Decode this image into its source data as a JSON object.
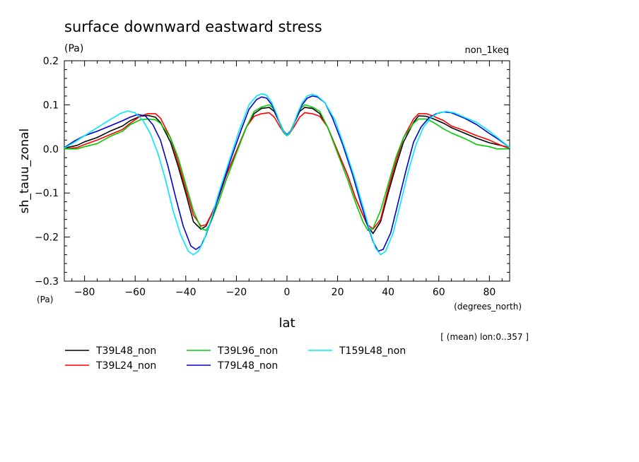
{
  "chart_data": {
    "type": "line",
    "title": "surface downward eastward stress",
    "units_top": "(Pa)",
    "experiment": "non_1keq",
    "ylabel": "sh_tauu_zonal",
    "ylabel_units": "(Pa)",
    "xlabel": "lat",
    "xlabel_units": "(degrees_north)",
    "note": "[ (mean) lon:0..357 ]",
    "xlim": [
      -88,
      88
    ],
    "ylim": [
      -0.3,
      0.2
    ],
    "x_ticks": [
      -80,
      -60,
      -40,
      -20,
      0,
      20,
      40,
      60,
      80
    ],
    "x_tick_labels": [
      "−80",
      "−60",
      "−40",
      "−20",
      "0",
      "20",
      "40",
      "60",
      "80"
    ],
    "y_ticks": [
      -0.3,
      -0.2,
      -0.1,
      0.0,
      0.1,
      0.2
    ],
    "y_tick_labels": [
      "−0.3",
      "−0.2",
      "−0.1",
      "0.0",
      "0.1",
      "0.2"
    ],
    "grid": false,
    "legend_position": "bottom-left",
    "series": [
      {
        "name": "T39L48_non",
        "color": "#000000",
        "x": [
          -88,
          -83,
          -80,
          -75,
          -70,
          -65,
          -62,
          -58,
          -55,
          -52,
          -50,
          -46,
          -43,
          -40,
          -37,
          -34,
          -32,
          -30,
          -27,
          -24,
          -20,
          -16,
          -13,
          -10,
          -7,
          -5,
          -3,
          -1,
          0,
          1,
          3,
          5,
          7,
          10,
          13,
          16,
          20,
          24,
          27,
          30,
          32,
          34,
          37,
          40,
          43,
          46,
          50,
          52,
          55,
          58,
          62,
          65,
          70,
          75,
          80,
          83,
          86,
          88
        ],
        "y": [
          0.002,
          0.008,
          0.016,
          0.026,
          0.04,
          0.052,
          0.064,
          0.074,
          0.076,
          0.072,
          0.06,
          0.015,
          -0.04,
          -0.1,
          -0.165,
          -0.182,
          -0.175,
          -0.15,
          -0.11,
          -0.06,
          -0.005,
          0.05,
          0.08,
          0.092,
          0.094,
          0.085,
          0.06,
          0.035,
          0.03,
          0.035,
          0.06,
          0.085,
          0.094,
          0.092,
          0.08,
          0.05,
          -0.005,
          -0.06,
          -0.11,
          -0.15,
          -0.175,
          -0.192,
          -0.165,
          -0.1,
          -0.04,
          0.015,
          0.06,
          0.075,
          0.074,
          0.068,
          0.058,
          0.048,
          0.036,
          0.024,
          0.014,
          0.01,
          0.006,
          0.002
        ]
      },
      {
        "name": "T39L24_non",
        "color": "#ff0000",
        "x": [
          -88,
          -83,
          -80,
          -75,
          -70,
          -65,
          -62,
          -58,
          -55,
          -52,
          -50,
          -46,
          -43,
          -40,
          -37,
          -34,
          -32,
          -30,
          -27,
          -24,
          -20,
          -16,
          -13,
          -10,
          -7,
          -5,
          -3,
          -1,
          0,
          1,
          3,
          5,
          7,
          10,
          13,
          16,
          20,
          24,
          27,
          30,
          32,
          34,
          37,
          40,
          43,
          46,
          50,
          52,
          55,
          58,
          62,
          65,
          70,
          75,
          80,
          83,
          86,
          88
        ],
        "y": [
          0.0,
          0.003,
          0.01,
          0.02,
          0.032,
          0.044,
          0.058,
          0.074,
          0.08,
          0.08,
          0.07,
          0.025,
          -0.03,
          -0.09,
          -0.15,
          -0.175,
          -0.172,
          -0.15,
          -0.11,
          -0.06,
          -0.005,
          0.05,
          0.074,
          0.08,
          0.082,
          0.072,
          0.052,
          0.035,
          0.03,
          0.035,
          0.052,
          0.072,
          0.082,
          0.08,
          0.074,
          0.05,
          -0.005,
          -0.06,
          -0.11,
          -0.15,
          -0.172,
          -0.182,
          -0.16,
          -0.09,
          -0.03,
          0.025,
          0.068,
          0.08,
          0.08,
          0.074,
          0.064,
          0.052,
          0.042,
          0.03,
          0.02,
          0.012,
          0.005,
          0.002
        ]
      },
      {
        "name": "T39L96_non",
        "color": "#00cc00",
        "x": [
          -88,
          -83,
          -80,
          -75,
          -70,
          -65,
          -62,
          -58,
          -55,
          -52,
          -50,
          -46,
          -43,
          -40,
          -37,
          -34,
          -32,
          -30,
          -27,
          -24,
          -20,
          -16,
          -13,
          -10,
          -7,
          -5,
          -3,
          -1,
          0,
          1,
          3,
          5,
          7,
          10,
          13,
          16,
          20,
          24,
          27,
          30,
          32,
          34,
          37,
          40,
          43,
          46,
          50,
          52,
          55,
          58,
          62,
          65,
          70,
          75,
          80,
          83,
          86,
          88
        ],
        "y": [
          0.0,
          0.0,
          0.005,
          0.012,
          0.028,
          0.04,
          0.055,
          0.066,
          0.068,
          0.066,
          0.058,
          0.025,
          -0.02,
          -0.08,
          -0.14,
          -0.18,
          -0.185,
          -0.165,
          -0.12,
          -0.07,
          -0.01,
          0.05,
          0.085,
          0.095,
          0.1,
          0.09,
          0.062,
          0.035,
          0.03,
          0.035,
          0.062,
          0.09,
          0.1,
          0.095,
          0.085,
          0.05,
          -0.01,
          -0.07,
          -0.12,
          -0.165,
          -0.185,
          -0.18,
          -0.14,
          -0.08,
          -0.02,
          0.025,
          0.058,
          0.068,
          0.068,
          0.06,
          0.045,
          0.036,
          0.024,
          0.01,
          0.005,
          0.0,
          0.0,
          0.002
        ]
      },
      {
        "name": "T79L48_non",
        "color": "#0000cc",
        "x": [
          -88,
          -84,
          -80,
          -75,
          -70,
          -65,
          -62,
          -59,
          -56,
          -53,
          -50,
          -47,
          -44,
          -41,
          -38,
          -36,
          -34,
          -32,
          -29,
          -26,
          -22,
          -18,
          -15,
          -12,
          -10,
          -8,
          -6,
          -4,
          -2,
          0,
          2,
          4,
          6,
          8,
          10,
          12,
          15,
          18,
          22,
          26,
          29,
          32,
          34,
          36,
          38,
          41,
          44,
          47,
          50,
          53,
          56,
          59,
          62,
          65,
          70,
          75,
          80,
          84,
          88
        ],
        "y": [
          0.003,
          0.018,
          0.03,
          0.04,
          0.052,
          0.064,
          0.072,
          0.078,
          0.075,
          0.055,
          0.02,
          -0.04,
          -0.11,
          -0.175,
          -0.22,
          -0.228,
          -0.22,
          -0.195,
          -0.145,
          -0.09,
          -0.02,
          0.045,
          0.09,
          0.112,
          0.118,
          0.115,
          0.1,
          0.075,
          0.045,
          0.032,
          0.045,
          0.075,
          0.1,
          0.115,
          0.12,
          0.118,
          0.105,
          0.07,
          0.01,
          -0.06,
          -0.12,
          -0.175,
          -0.21,
          -0.232,
          -0.228,
          -0.19,
          -0.12,
          -0.05,
          0.015,
          0.05,
          0.07,
          0.08,
          0.084,
          0.082,
          0.07,
          0.055,
          0.035,
          0.02,
          0.003
        ]
      },
      {
        "name": "T159L48_non",
        "color": "#00e8ff",
        "x": [
          -88,
          -84,
          -80,
          -75,
          -70,
          -66,
          -63,
          -60,
          -57,
          -54,
          -51,
          -48,
          -45,
          -42,
          -39,
          -37,
          -35,
          -33,
          -30,
          -27,
          -23,
          -19,
          -15,
          -12,
          -10,
          -8,
          -6,
          -4,
          -2,
          0,
          2,
          4,
          6,
          8,
          10,
          12,
          15,
          19,
          23,
          27,
          30,
          33,
          35,
          37,
          39,
          42,
          45,
          48,
          51,
          54,
          57,
          60,
          63,
          66,
          70,
          75,
          80,
          84,
          88
        ],
        "y": [
          0.002,
          0.015,
          0.03,
          0.048,
          0.066,
          0.08,
          0.086,
          0.082,
          0.065,
          0.035,
          -0.01,
          -0.07,
          -0.14,
          -0.195,
          -0.232,
          -0.24,
          -0.232,
          -0.21,
          -0.16,
          -0.1,
          -0.03,
          0.04,
          0.1,
          0.12,
          0.125,
          0.122,
          0.105,
          0.078,
          0.045,
          0.03,
          0.045,
          0.078,
          0.105,
          0.12,
          0.124,
          0.12,
          0.105,
          0.065,
          0.0,
          -0.07,
          -0.13,
          -0.19,
          -0.225,
          -0.24,
          -0.232,
          -0.19,
          -0.12,
          -0.05,
          0.01,
          0.05,
          0.072,
          0.082,
          0.085,
          0.082,
          0.072,
          0.06,
          0.04,
          0.022,
          0.003
        ]
      }
    ]
  }
}
